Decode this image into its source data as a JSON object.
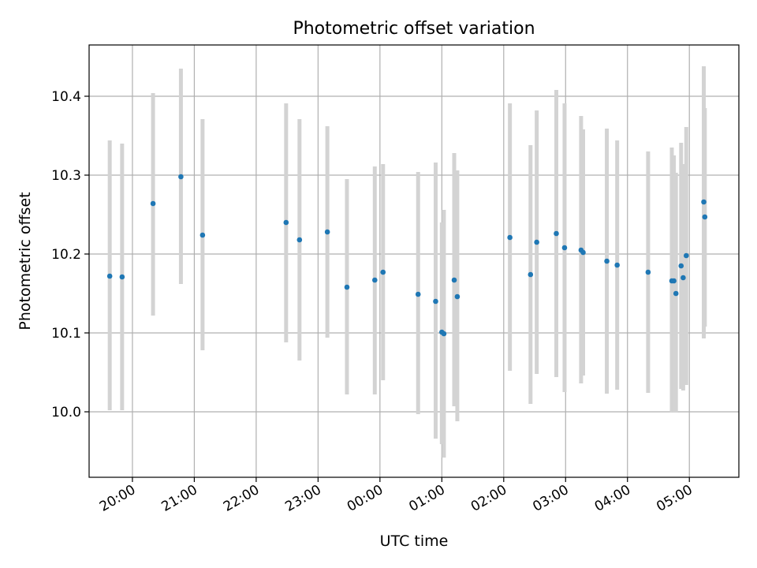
{
  "chart_data": {
    "type": "scatter",
    "title": "Photometric offset variation",
    "xlabel": "UTC time",
    "ylabel": "Photometric offset",
    "grid": true,
    "xlim": [
      "2024-01-01T19:18",
      "2024-01-02T05:48"
    ],
    "ylim": [
      9.917,
      10.465
    ],
    "x_ticks": [
      "20:00",
      "21:00",
      "22:00",
      "23:00",
      "00:00",
      "01:00",
      "02:00",
      "03:00",
      "04:00",
      "05:00"
    ],
    "y_ticks": [
      "10.0",
      "10.1",
      "10.2",
      "10.3",
      "10.4"
    ],
    "colors": {
      "point": "#1f77b4",
      "errorbar": "#d3d3d3",
      "grid": "#b0b0b0"
    },
    "series": [
      {
        "points": [
          {
            "x": "2024-01-01T19:38",
            "y": 10.172,
            "ylow": 10.002,
            "yhigh": 10.344
          },
          {
            "x": "2024-01-01T19:50",
            "y": 10.171,
            "ylow": 10.002,
            "yhigh": 10.34
          },
          {
            "x": "2024-01-01T20:20",
            "y": 10.264,
            "ylow": 10.122,
            "yhigh": 10.404
          },
          {
            "x": "2024-01-01T20:47",
            "y": 10.298,
            "ylow": 10.162,
            "yhigh": 10.435
          },
          {
            "x": "2024-01-01T21:08",
            "y": 10.224,
            "ylow": 10.078,
            "yhigh": 10.371
          },
          {
            "x": "2024-01-01T22:29",
            "y": 10.24,
            "ylow": 10.088,
            "yhigh": 10.391
          },
          {
            "x": "2024-01-01T22:42",
            "y": 10.218,
            "ylow": 10.065,
            "yhigh": 10.371
          },
          {
            "x": "2024-01-01T23:09",
            "y": 10.228,
            "ylow": 10.094,
            "yhigh": 10.362
          },
          {
            "x": "2024-01-01T23:28",
            "y": 10.158,
            "ylow": 10.022,
            "yhigh": 10.295
          },
          {
            "x": "2024-01-01T23:55",
            "y": 10.167,
            "ylow": 10.022,
            "yhigh": 10.311
          },
          {
            "x": "2024-01-02T00:03",
            "y": 10.177,
            "ylow": 10.04,
            "yhigh": 10.314
          },
          {
            "x": "2024-01-02T00:37",
            "y": 10.149,
            "ylow": 9.997,
            "yhigh": 10.304
          },
          {
            "x": "2024-01-02T00:54",
            "y": 10.14,
            "ylow": 9.966,
            "yhigh": 10.316
          },
          {
            "x": "2024-01-02T01:00",
            "y": 10.101,
            "ylow": 9.959,
            "yhigh": 10.24
          },
          {
            "x": "2024-01-02T01:02",
            "y": 10.099,
            "ylow": 9.942,
            "yhigh": 10.256
          },
          {
            "x": "2024-01-02T01:12",
            "y": 10.167,
            "ylow": 10.007,
            "yhigh": 10.328
          },
          {
            "x": "2024-01-02T01:15",
            "y": 10.146,
            "ylow": 9.988,
            "yhigh": 10.306
          },
          {
            "x": "2024-01-02T02:06",
            "y": 10.221,
            "ylow": 10.052,
            "yhigh": 10.391
          },
          {
            "x": "2024-01-02T02:26",
            "y": 10.174,
            "ylow": 10.01,
            "yhigh": 10.338
          },
          {
            "x": "2024-01-02T02:32",
            "y": 10.215,
            "ylow": 10.048,
            "yhigh": 10.382
          },
          {
            "x": "2024-01-02T02:51",
            "y": 10.226,
            "ylow": 10.044,
            "yhigh": 10.408
          },
          {
            "x": "2024-01-02T02:59",
            "y": 10.208,
            "ylow": 10.025,
            "yhigh": 10.391
          },
          {
            "x": "2024-01-02T03:15",
            "y": 10.205,
            "ylow": 10.036,
            "yhigh": 10.375
          },
          {
            "x": "2024-01-02T03:17",
            "y": 10.202,
            "ylow": 10.046,
            "yhigh": 10.358
          },
          {
            "x": "2024-01-02T03:40",
            "y": 10.191,
            "ylow": 10.023,
            "yhigh": 10.359
          },
          {
            "x": "2024-01-02T03:50",
            "y": 10.186,
            "ylow": 10.028,
            "yhigh": 10.344
          },
          {
            "x": "2024-01-02T04:20",
            "y": 10.177,
            "ylow": 10.024,
            "yhigh": 10.33
          },
          {
            "x": "2024-01-02T04:43",
            "y": 10.166,
            "ylow": 9.999,
            "yhigh": 10.335
          },
          {
            "x": "2024-01-02T04:45",
            "y": 10.166,
            "ylow": 9.999,
            "yhigh": 10.325
          },
          {
            "x": "2024-01-02T04:47",
            "y": 10.15,
            "ylow": 9.999,
            "yhigh": 10.303
          },
          {
            "x": "2024-01-02T04:52",
            "y": 10.185,
            "ylow": 10.029,
            "yhigh": 10.341
          },
          {
            "x": "2024-01-02T04:54",
            "y": 10.17,
            "ylow": 10.027,
            "yhigh": 10.314
          },
          {
            "x": "2024-01-02T04:57",
            "y": 10.198,
            "ylow": 10.034,
            "yhigh": 10.361
          },
          {
            "x": "2024-01-02T05:14",
            "y": 10.266,
            "ylow": 10.093,
            "yhigh": 10.438
          },
          {
            "x": "2024-01-02T05:15",
            "y": 10.247,
            "ylow": 10.108,
            "yhigh": 10.385
          }
        ]
      }
    ]
  }
}
